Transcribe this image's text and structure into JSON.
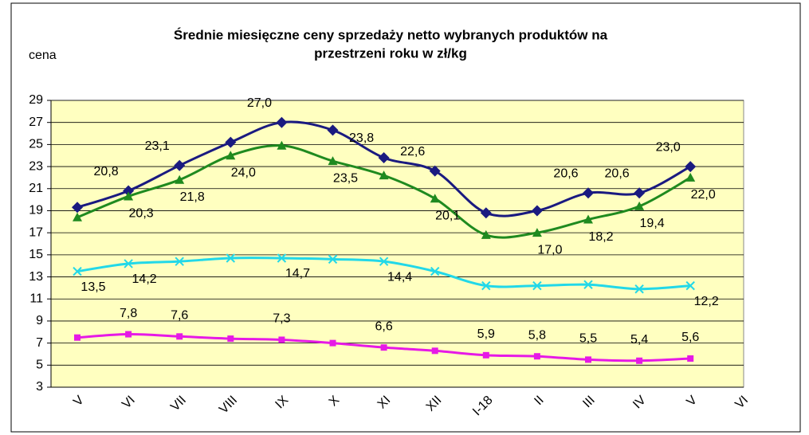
{
  "chart_data": {
    "type": "line",
    "title": [
      "Średnie miesięczne ceny sprzedaży netto  wybranych produktów na",
      "przestrzeni roku w zł/kg"
    ],
    "ylabel": "cena",
    "categories": [
      "V",
      "VI",
      "VII",
      "VIII",
      "IX",
      "X",
      "XI",
      "XII",
      "I-18",
      "II",
      "III",
      "IV",
      "V",
      "VI"
    ],
    "ylim": [
      3,
      29
    ],
    "yticks": [
      3,
      5,
      7,
      9,
      11,
      13,
      15,
      17,
      19,
      21,
      23,
      25,
      27,
      29
    ],
    "grid": true,
    "series": [
      {
        "color": "#1a1a80",
        "marker": "diamond",
        "values": [
          19.3,
          20.8,
          23.1,
          25.2,
          27.0,
          26.3,
          23.8,
          22.6,
          18.8,
          19.0,
          20.6,
          20.6,
          23.0,
          null
        ],
        "value_labels": [
          null,
          "20,8",
          "23,1",
          null,
          "27,0",
          null,
          "23,8",
          "22,6",
          null,
          null,
          "20,6",
          "20,6",
          "23,0",
          null
        ]
      },
      {
        "color": "#1f8a1f",
        "marker": "triangle",
        "values": [
          18.4,
          20.3,
          21.8,
          24.0,
          24.9,
          23.5,
          22.2,
          20.1,
          16.8,
          17.0,
          18.2,
          19.4,
          22.0,
          null
        ],
        "value_labels": [
          null,
          "20,3",
          "21,8",
          "24,0",
          null,
          "23,5",
          null,
          "20,1",
          null,
          "17,0",
          "18,2",
          "19,4",
          "22,0",
          null
        ]
      },
      {
        "color": "#22d8e8",
        "marker": "x",
        "values": [
          13.5,
          14.2,
          14.4,
          14.7,
          14.7,
          14.6,
          14.4,
          13.5,
          12.2,
          12.2,
          12.3,
          11.9,
          12.2,
          null
        ],
        "value_labels": [
          "13,5",
          "14,2",
          null,
          null,
          "14,7",
          null,
          "14,4",
          null,
          null,
          null,
          null,
          null,
          "12,2",
          null
        ]
      },
      {
        "color": "#e619e6",
        "marker": "square",
        "values": [
          7.5,
          7.8,
          7.6,
          7.4,
          7.3,
          7.0,
          6.6,
          6.3,
          5.9,
          5.8,
          5.5,
          5.4,
          5.6,
          null
        ],
        "value_labels": [
          null,
          "7,8",
          "7,6",
          null,
          "7,3",
          null,
          "6,6",
          null,
          "5,9",
          "5,8",
          "5,5",
          "5,4",
          "5,6",
          null
        ]
      }
    ]
  }
}
